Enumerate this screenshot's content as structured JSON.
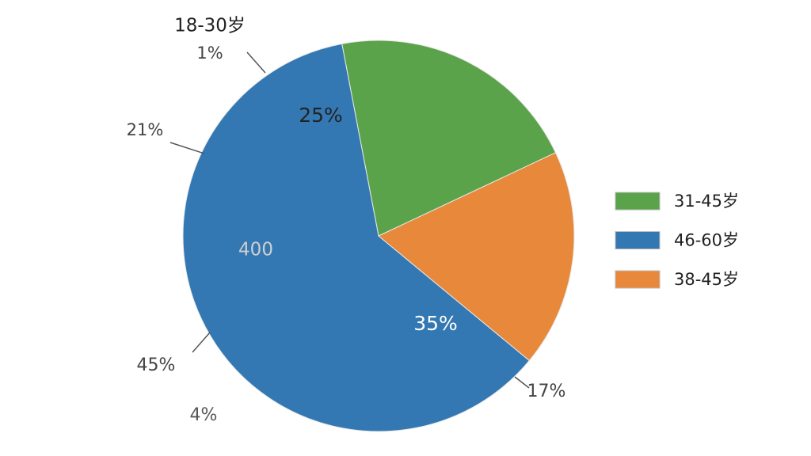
{
  "chart_data": {
    "type": "pie",
    "direction": "counterclockwise",
    "categories": [
      "31-45岁",
      "46-60岁",
      "38-45岁"
    ],
    "values": [
      21,
      61,
      18
    ],
    "colors": [
      "#5aa34a",
      "#3478b3",
      "#e8883a"
    ],
    "legend": "right",
    "annotations": [
      "18-30岁",
      "1%",
      "25%",
      "21%",
      "400",
      "35%",
      "45%",
      "4%",
      "17%"
    ]
  }
}
